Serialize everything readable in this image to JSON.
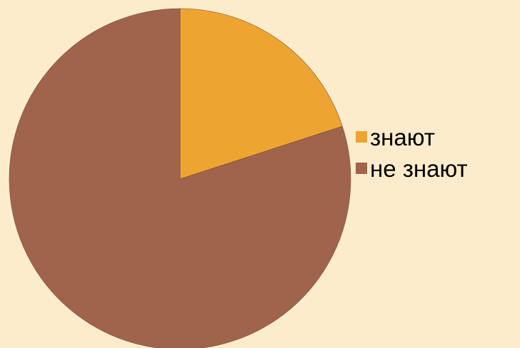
{
  "chart_data": {
    "type": "pie",
    "title": "",
    "start_angle_deg": 0,
    "direction": "clockwise",
    "slices": [
      {
        "label": "знают",
        "value": 20,
        "color": "#eea431"
      },
      {
        "label": "не знают",
        "value": 80,
        "color": "#a0634c"
      }
    ],
    "legend": {
      "position": "right"
    }
  },
  "colors": {
    "background": "#fdeccb",
    "slice_stroke": "#7a4a38"
  }
}
